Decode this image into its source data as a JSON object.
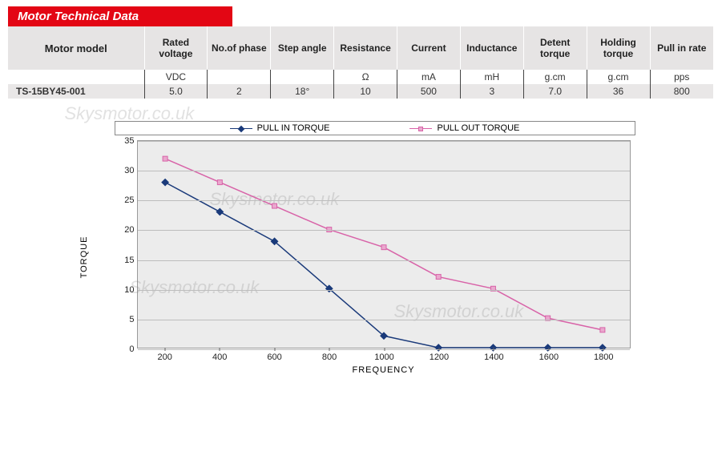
{
  "header": {
    "title": "Motor Technical Data"
  },
  "table": {
    "columns": [
      "Motor model",
      "Rated voltage",
      "No.of phase",
      "Step angle",
      "Resistance",
      "Current",
      "Inductance",
      "Detent torque",
      "Holding torque",
      "Pull in rate"
    ],
    "units": [
      "",
      "VDC",
      "",
      "",
      "Ω",
      "mA",
      "mH",
      "g.cm",
      "g.cm",
      "pps"
    ],
    "row": [
      "TS-15BY45-001",
      "5.0",
      "2",
      "18°",
      "10",
      "500",
      "3",
      "7.0",
      "36",
      "800"
    ],
    "header_bg": "#e6e4e4",
    "row_bg": "#e9e7e7"
  },
  "chart": {
    "type": "line",
    "xlabel": "FREQUENCY",
    "ylabel": "TORQUE",
    "xlim": [
      100,
      1900
    ],
    "ylim": [
      0,
      35
    ],
    "xtick_values": [
      200,
      400,
      600,
      800,
      1000,
      1200,
      1400,
      1600,
      1800
    ],
    "ytick_values": [
      0,
      5,
      10,
      15,
      20,
      25,
      30,
      35
    ],
    "background_color": "#ececec",
    "grid_color": "#bdbdbd",
    "line_width": 1.5,
    "marker_size": 6,
    "label_fontsize": 11,
    "series": [
      {
        "name": "PULL IN TORQUE",
        "color": "#1a3a7a",
        "marker": "diamond",
        "marker_fill": "#1a3a7a",
        "x": [
          200,
          400,
          600,
          800,
          1000,
          1200,
          1400,
          1600,
          1800
        ],
        "y": [
          28,
          23,
          18,
          10,
          2,
          0,
          0,
          0,
          0
        ]
      },
      {
        "name": "PULL OUT TORQUE",
        "color": "#d863a8",
        "marker": "square",
        "marker_fill": "#eaa8ce",
        "x": [
          200,
          400,
          600,
          800,
          1000,
          1200,
          1400,
          1600,
          1800
        ],
        "y": [
          32,
          28,
          24,
          20,
          17,
          12,
          10,
          5,
          3
        ]
      }
    ]
  },
  "watermark": {
    "text": "Skysmotor.co.uk"
  }
}
